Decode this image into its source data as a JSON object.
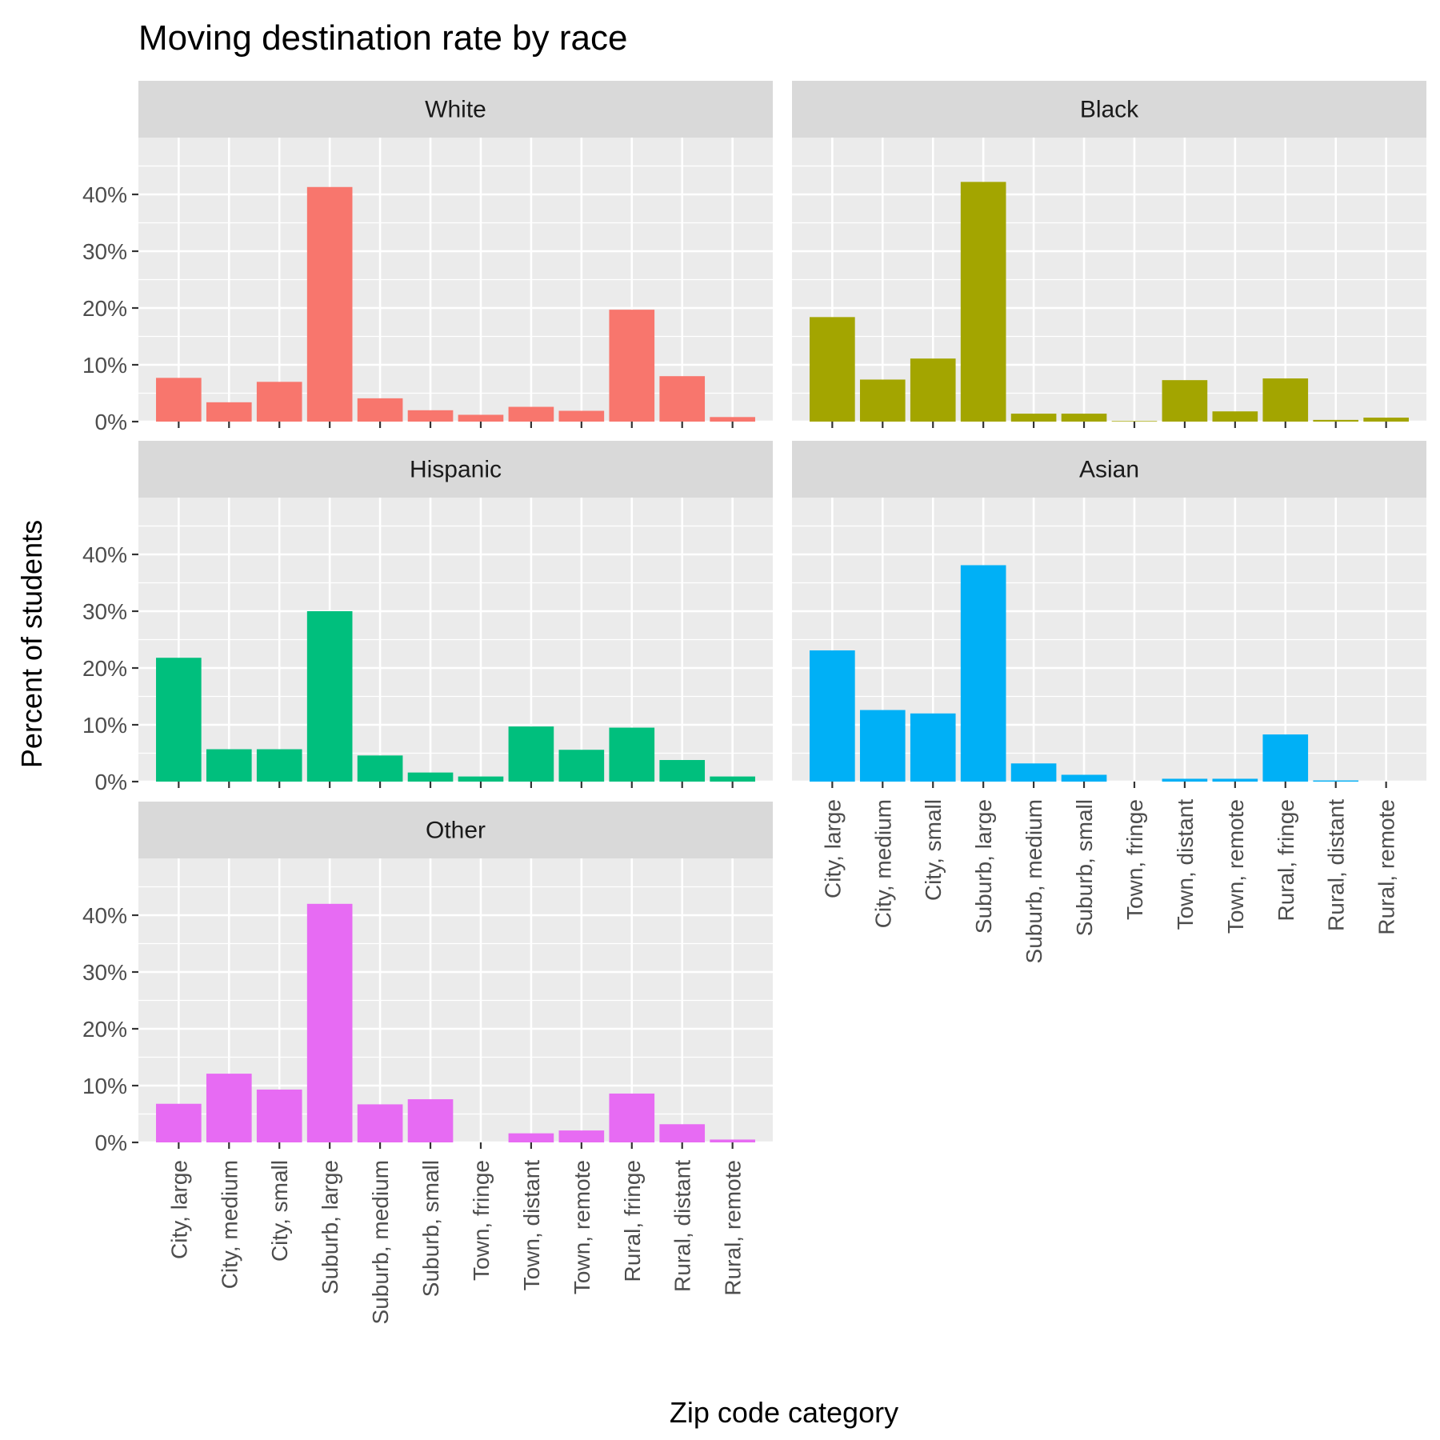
{
  "chart_data": {
    "type": "bar",
    "title": "Moving destination rate by race",
    "xlabel": "Zip code category",
    "ylabel": "Percent of students",
    "ylim": [
      0,
      0.5
    ],
    "y_ticks": [
      0,
      0.1,
      0.2,
      0.3,
      0.4
    ],
    "y_tick_labels": [
      "0%",
      "10%",
      "20%",
      "30%",
      "40%"
    ],
    "grid": true,
    "legend": "none",
    "categories": [
      "City, large",
      "City, medium",
      "City, small",
      "Suburb, large",
      "Suburb, medium",
      "Suburb, small",
      "Town, fringe",
      "Town, distant",
      "Town, remote",
      "Rural, fringe",
      "Rural, distant",
      "Rural, remote"
    ],
    "series": [
      {
        "name": "White",
        "color": "#F8766D",
        "values": [
          0.077,
          0.034,
          0.07,
          0.413,
          0.041,
          0.02,
          0.012,
          0.026,
          0.019,
          0.197,
          0.08,
          0.008
        ]
      },
      {
        "name": "Black",
        "color": "#A3A500",
        "values": [
          0.184,
          0.074,
          0.111,
          0.422,
          0.014,
          0.014,
          0.001,
          0.073,
          0.018,
          0.076,
          0.003,
          0.007
        ]
      },
      {
        "name": "Hispanic",
        "color": "#00BF7D",
        "values": [
          0.218,
          0.057,
          0.057,
          0.3,
          0.046,
          0.016,
          0.009,
          0.097,
          0.056,
          0.095,
          0.038,
          0.009
        ]
      },
      {
        "name": "Asian",
        "color": "#00B0F6",
        "values": [
          0.231,
          0.126,
          0.12,
          0.381,
          0.032,
          0.012,
          0.0,
          0.005,
          0.005,
          0.083,
          0.002,
          0.0
        ]
      },
      {
        "name": "Other",
        "color": "#E76BF3",
        "values": [
          0.068,
          0.121,
          0.093,
          0.42,
          0.067,
          0.076,
          0.0,
          0.016,
          0.021,
          0.086,
          0.032,
          0.005
        ]
      }
    ]
  }
}
